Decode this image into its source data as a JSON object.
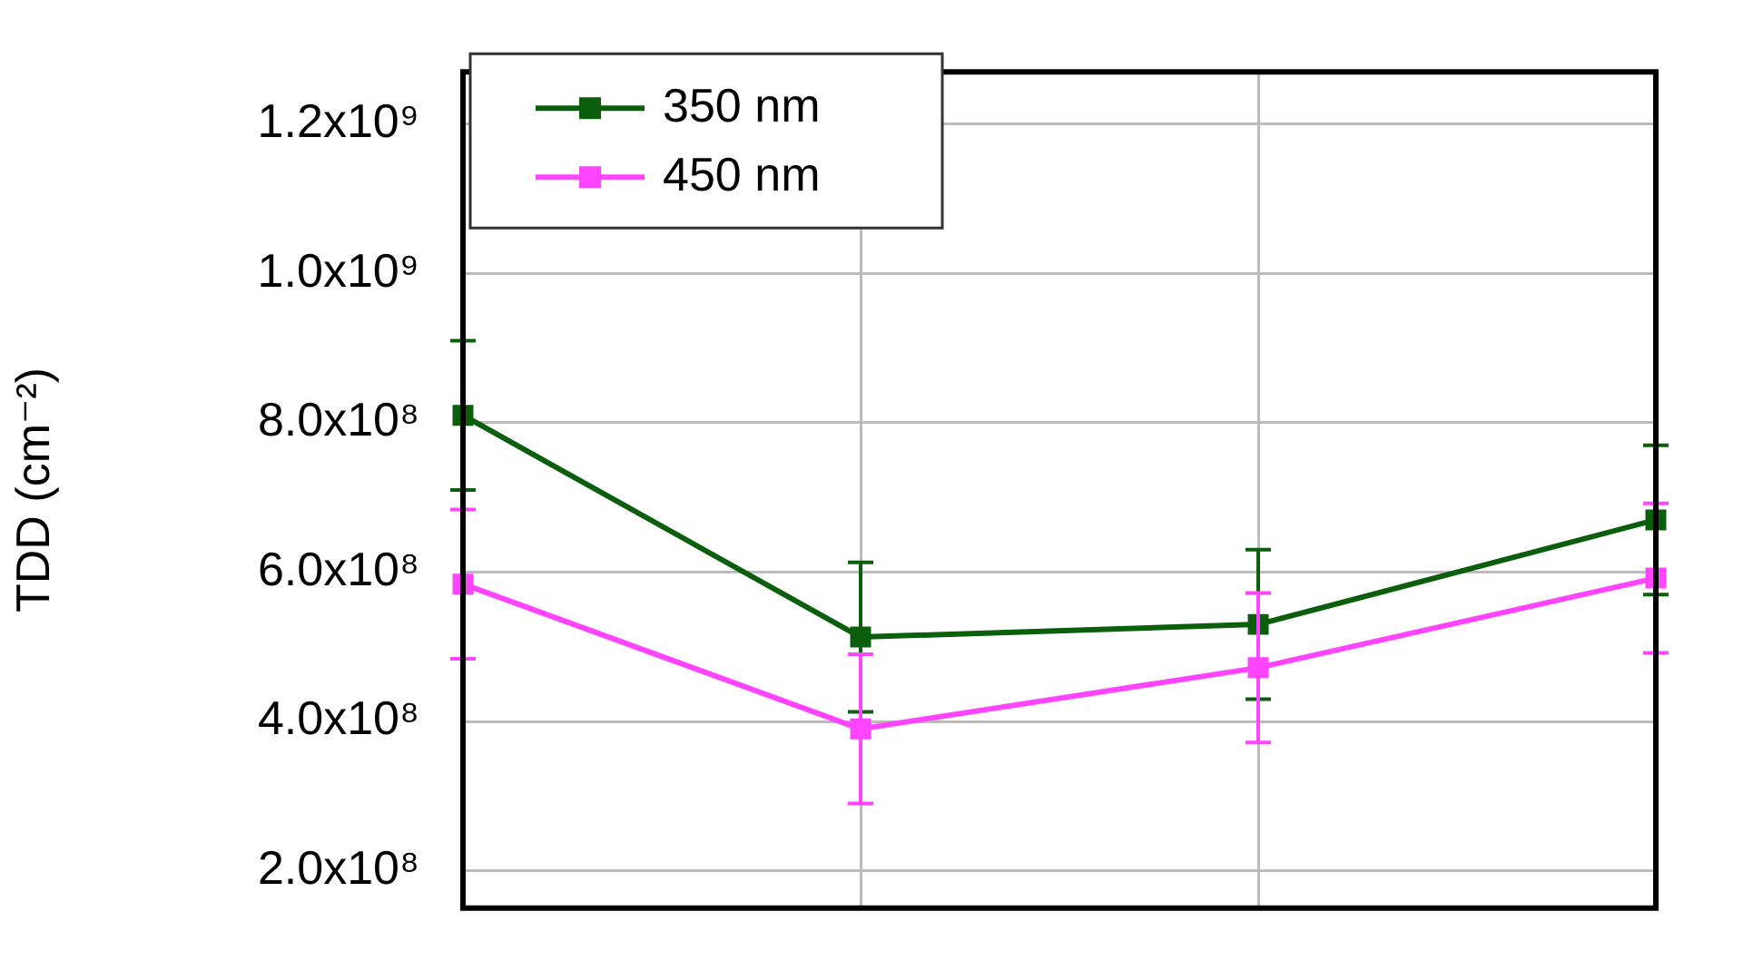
{
  "chart_data": {
    "type": "line",
    "ylabel": "TDD (cm⁻²)",
    "categories": [
      null,
      null,
      null,
      null
    ],
    "series": [
      {
        "name": "350 nm",
        "color": "#0b5e0b",
        "values": [
          810000000.0,
          513000000.0,
          530000000.0,
          670000000.0
        ],
        "errors": [
          100000000.0,
          100000000.0,
          100000000.0,
          100000000.0
        ]
      },
      {
        "name": "450 nm",
        "color": "#ff44ff",
        "values": [
          584000000.0,
          390000000.0,
          472000000.0,
          592000000.0
        ],
        "errors": [
          100000000.0,
          100000000.0,
          100000000.0,
          100000000.0
        ]
      }
    ],
    "ylim": [
      150000000.0,
      1270000000.0
    ],
    "yticks": [
      {
        "value": 200000000.0,
        "label": "2.0x10⁸"
      },
      {
        "value": 400000000.0,
        "label": "4.0x10⁸"
      },
      {
        "value": 600000000.0,
        "label": "6.0x10⁸"
      },
      {
        "value": 800000000.0,
        "label": "8.0x10⁸"
      },
      {
        "value": 1000000000.0,
        "label": "1.0x10⁹"
      },
      {
        "value": 1200000000.0,
        "label": "1.2x10⁹"
      }
    ],
    "grid": true,
    "legend": "top left",
    "marker": "square",
    "line_style": "solid"
  }
}
